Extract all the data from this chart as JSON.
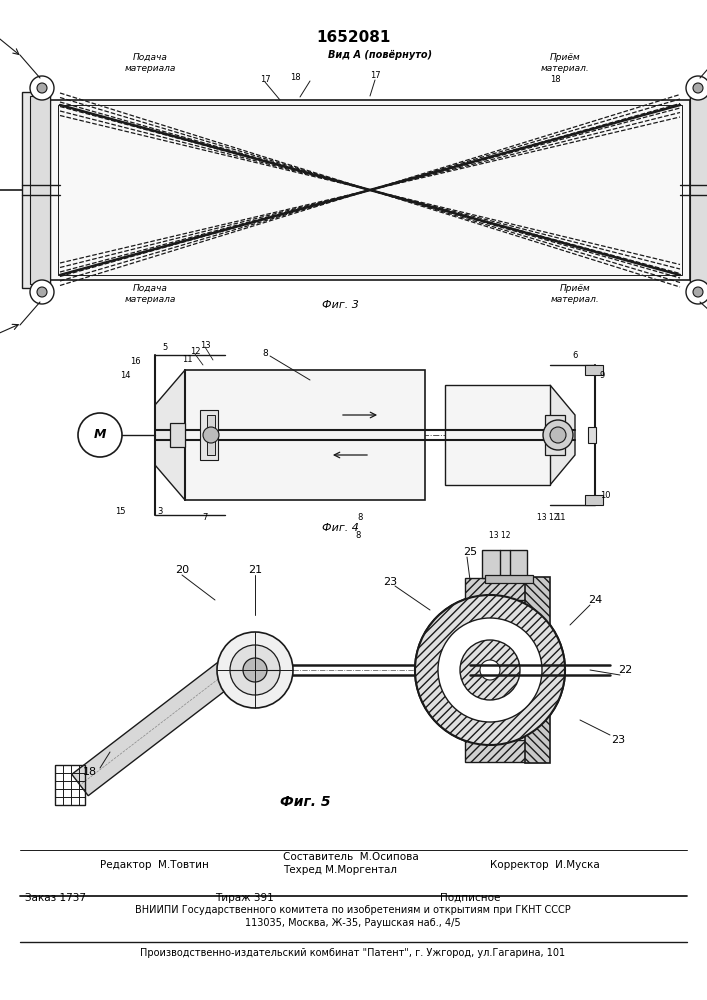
{
  "title": "1652081",
  "bg_color": "#ffffff",
  "fig_width": 7.07,
  "fig_height": 10.0,
  "dpi": 100,
  "footer": {
    "editor": "Редактор  М.Товтин",
    "compositor_line1": "Составитель  М.Осипова",
    "compositor_line2": "Техред М.Моргентал",
    "corrector": "Корректор  И.Муска",
    "order": "Заказ 1737",
    "circulation": "Тираж 391",
    "subscription": "Подписное",
    "vnipi_line1": "ВНИИПИ Государственного комитета по изобретениям и открытиям при ГКНТ СССР",
    "vnipi_line2": "113035, Москва, Ж-35, Раушская наб., 4/5",
    "patent_line": "Производственно-издательский комбинат \"Патент\", г. Ужгород, ул.Гагарина, 101"
  },
  "fig3_label": "Фиг. 3",
  "fig4_label": "Фиг. 4",
  "fig5_label": "Фиг. 5",
  "line_color": "#1a1a1a",
  "hatch_color": "#555555"
}
